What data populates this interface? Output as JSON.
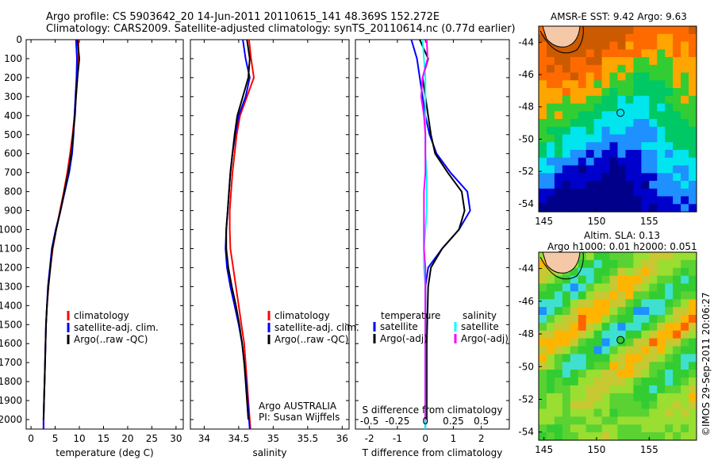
{
  "header": {
    "line1": "Argo profile: CS 5903642_20 14-Jun-2011 20110615_141 48.369S 152.272E",
    "line2": "Climatology: CARS2009. Satellite-adjusted climatology: synTS_20110614.nc (0.77d earlier)"
  },
  "colors": {
    "climatology": "#ff0000",
    "satellite": "#0000ff",
    "argo": "#000000",
    "satellite_salinity": "#00ffff",
    "argo_salinity": "#ff00ff"
  },
  "chart_data": [
    {
      "type": "line",
      "panel": "temperature",
      "xlabel": "temperature (deg C)",
      "ylabel": "",
      "xlim": [
        -1,
        31.5
      ],
      "ylim": [
        2050,
        0
      ],
      "xticks": [
        0,
        5,
        10,
        15,
        20,
        25,
        30
      ],
      "yticks": [
        0,
        100,
        200,
        300,
        400,
        500,
        600,
        700,
        800,
        900,
        1000,
        1100,
        1200,
        1300,
        1400,
        1500,
        1600,
        1700,
        1800,
        1900,
        2000
      ],
      "legend": [
        "climatology",
        "satellite-adj. clim.",
        "Argo(..raw -QC)"
      ],
      "series": [
        {
          "name": "climatology",
          "color": "#ff0000",
          "points": [
            [
              9.8,
              0
            ],
            [
              9.8,
              100
            ],
            [
              9.6,
              200
            ],
            [
              9.3,
              300
            ],
            [
              9.0,
              400
            ],
            [
              8.6,
              500
            ],
            [
              8.1,
              600
            ],
            [
              7.5,
              700
            ],
            [
              6.8,
              800
            ],
            [
              6.0,
              900
            ],
            [
              5.2,
              1000
            ],
            [
              4.5,
              1100
            ],
            [
              4.0,
              1200
            ],
            [
              3.6,
              1300
            ],
            [
              3.3,
              1400
            ],
            [
              3.1,
              1500
            ],
            [
              3.0,
              1600
            ],
            [
              2.9,
              1700
            ],
            [
              2.8,
              1800
            ],
            [
              2.7,
              1900
            ],
            [
              2.6,
              2000
            ],
            [
              2.6,
              2050
            ]
          ]
        },
        {
          "name": "satellite-adj. clim.",
          "color": "#0000ff",
          "points": [
            [
              9.3,
              0
            ],
            [
              9.5,
              100
            ],
            [
              9.4,
              200
            ],
            [
              9.2,
              300
            ],
            [
              9.0,
              400
            ],
            [
              8.8,
              500
            ],
            [
              8.5,
              600
            ],
            [
              7.9,
              700
            ],
            [
              7.0,
              800
            ],
            [
              6.1,
              900
            ],
            [
              5.1,
              1000
            ],
            [
              4.3,
              1100
            ],
            [
              3.9,
              1200
            ],
            [
              3.5,
              1300
            ],
            [
              3.3,
              1400
            ],
            [
              3.1,
              1500
            ],
            [
              3.0,
              1600
            ],
            [
              2.9,
              1700
            ],
            [
              2.8,
              1800
            ],
            [
              2.7,
              1900
            ],
            [
              2.6,
              2000
            ],
            [
              2.6,
              2050
            ]
          ]
        },
        {
          "name": "Argo(..raw -QC)",
          "color": "#000000",
          "points": [
            [
              9.6,
              0
            ],
            [
              10.0,
              100
            ],
            [
              9.6,
              200
            ],
            [
              9.3,
              300
            ],
            [
              9.1,
              400
            ],
            [
              8.7,
              500
            ],
            [
              8.3,
              600
            ],
            [
              7.7,
              700
            ],
            [
              6.9,
              800
            ],
            [
              6.1,
              900
            ],
            [
              5.2,
              1000
            ],
            [
              4.4,
              1100
            ],
            [
              4.0,
              1200
            ],
            [
              3.6,
              1300
            ],
            [
              3.3,
              1400
            ],
            [
              3.1,
              1500
            ],
            [
              3.0,
              1600
            ],
            [
              2.9,
              1700
            ],
            [
              2.8,
              1800
            ],
            [
              2.7,
              1900
            ],
            [
              2.6,
              2000
            ]
          ]
        }
      ]
    },
    {
      "type": "line",
      "panel": "salinity",
      "xlabel": "salinity",
      "ylabel": "",
      "xlim": [
        33.8,
        36.1
      ],
      "ylim": [
        2050,
        0
      ],
      "xticks": [
        34,
        34.5,
        35,
        35.5,
        36
      ],
      "legend": [
        "climatology",
        "satellite-adj. clim.",
        "Argo(..raw -QC)"
      ],
      "annotation": [
        "Argo AUSTRALIA",
        "PI: Susan Wijffels"
      ],
      "series": [
        {
          "name": "climatology",
          "color": "#ff0000",
          "points": [
            [
              34.65,
              0
            ],
            [
              34.68,
              100
            ],
            [
              34.72,
              200
            ],
            [
              34.62,
              300
            ],
            [
              34.52,
              400
            ],
            [
              34.47,
              500
            ],
            [
              34.44,
              600
            ],
            [
              34.41,
              700
            ],
            [
              34.39,
              800
            ],
            [
              34.37,
              900
            ],
            [
              34.37,
              1000
            ],
            [
              34.38,
              1100
            ],
            [
              34.42,
              1200
            ],
            [
              34.46,
              1300
            ],
            [
              34.5,
              1400
            ],
            [
              34.54,
              1500
            ],
            [
              34.58,
              1600
            ],
            [
              34.6,
              1700
            ],
            [
              34.62,
              1800
            ],
            [
              34.64,
              1900
            ],
            [
              34.66,
              2000
            ],
            [
              34.67,
              2050
            ]
          ]
        },
        {
          "name": "satellite-adj. clim.",
          "color": "#0000ff",
          "points": [
            [
              34.56,
              0
            ],
            [
              34.6,
              100
            ],
            [
              34.66,
              200
            ],
            [
              34.6,
              300
            ],
            [
              34.5,
              400
            ],
            [
              34.45,
              500
            ],
            [
              34.41,
              600
            ],
            [
              34.38,
              700
            ],
            [
              34.36,
              800
            ],
            [
              34.34,
              900
            ],
            [
              34.32,
              1000
            ],
            [
              34.31,
              1100
            ],
            [
              34.33,
              1200
            ],
            [
              34.38,
              1300
            ],
            [
              34.44,
              1400
            ],
            [
              34.5,
              1500
            ],
            [
              34.55,
              1600
            ],
            [
              34.58,
              1700
            ],
            [
              34.61,
              1800
            ],
            [
              34.63,
              1900
            ],
            [
              34.65,
              2000
            ],
            [
              34.66,
              2050
            ]
          ]
        },
        {
          "name": "Argo(..raw -QC)",
          "color": "#000000",
          "points": [
            [
              34.62,
              0
            ],
            [
              34.66,
              100
            ],
            [
              34.64,
              200
            ],
            [
              34.56,
              300
            ],
            [
              34.48,
              400
            ],
            [
              34.44,
              500
            ],
            [
              34.41,
              600
            ],
            [
              34.38,
              700
            ],
            [
              34.36,
              800
            ],
            [
              34.34,
              900
            ],
            [
              34.32,
              1000
            ],
            [
              34.32,
              1100
            ],
            [
              34.35,
              1200
            ],
            [
              34.4,
              1300
            ],
            [
              34.46,
              1400
            ],
            [
              34.51,
              1500
            ],
            [
              34.55,
              1600
            ],
            [
              34.58,
              1700
            ],
            [
              34.6,
              1800
            ],
            [
              34.62,
              1900
            ],
            [
              34.64,
              2000
            ]
          ]
        }
      ]
    },
    {
      "type": "line",
      "panel": "difference",
      "xlabel": "T difference from climatology",
      "xlabel_top": "S difference from climatology",
      "xlim": [
        -2.5,
        3.0
      ],
      "ylim": [
        2050,
        0
      ],
      "xticks": [
        -2,
        -1,
        0,
        1,
        2
      ],
      "xticks_top": [
        -0.5,
        -0.25,
        0,
        0.25,
        0.5
      ],
      "legend_headers": [
        "temperature",
        "salinity"
      ],
      "legend": [
        "satellite",
        "Argo(-adj)",
        "satellite",
        "Argo(-adj)"
      ],
      "series": [
        {
          "name": "satellite",
          "color": "#0000ff",
          "points": [
            [
              -0.5,
              0
            ],
            [
              -0.3,
              100
            ],
            [
              -0.2,
              200
            ],
            [
              -0.1,
              300
            ],
            [
              0.0,
              400
            ],
            [
              0.15,
              500
            ],
            [
              0.4,
              600
            ],
            [
              0.9,
              700
            ],
            [
              1.5,
              800
            ],
            [
              1.6,
              900
            ],
            [
              1.2,
              1000
            ],
            [
              0.6,
              1100
            ],
            [
              0.1,
              1200
            ],
            [
              0.0,
              1300
            ],
            [
              0.0,
              1600
            ],
            [
              0.0,
              2050
            ]
          ]
        },
        {
          "name": "Argo(-adj)",
          "color": "#000000",
          "points": [
            [
              -0.2,
              0
            ],
            [
              0.1,
              100
            ],
            [
              -0.1,
              200
            ],
            [
              0.0,
              300
            ],
            [
              0.1,
              400
            ],
            [
              0.2,
              500
            ],
            [
              0.35,
              600
            ],
            [
              0.8,
              700
            ],
            [
              1.3,
              800
            ],
            [
              1.4,
              900
            ],
            [
              1.2,
              1000
            ],
            [
              0.6,
              1100
            ],
            [
              0.2,
              1200
            ],
            [
              0.1,
              1300
            ],
            [
              0.05,
              1600
            ],
            [
              0.05,
              2000
            ]
          ]
        },
        {
          "name": "satellite",
          "color": "#00ffff",
          "points": [
            [
              -0.1,
              0
            ],
            [
              -0.05,
              100
            ],
            [
              0.0,
              200
            ],
            [
              0.0,
              300
            ],
            [
              0.0,
              400
            ],
            [
              0.0,
              500
            ],
            [
              0.0,
              600
            ],
            [
              0.05,
              700
            ],
            [
              0.05,
              800
            ],
            [
              0.05,
              900
            ],
            [
              0.0,
              1000
            ],
            [
              -0.05,
              1100
            ],
            [
              -0.05,
              1200
            ],
            [
              0.0,
              1300
            ],
            [
              0.0,
              1600
            ],
            [
              0.0,
              2050
            ]
          ]
        },
        {
          "name": "Argo(-adj)",
          "color": "#ff00ff",
          "points": [
            [
              0.05,
              0
            ],
            [
              0.08,
              100
            ],
            [
              -0.1,
              200
            ],
            [
              -0.15,
              300
            ],
            [
              -0.05,
              400
            ],
            [
              0.0,
              500
            ],
            [
              0.0,
              600
            ],
            [
              0.0,
              700
            ],
            [
              -0.05,
              800
            ],
            [
              -0.05,
              900
            ],
            [
              -0.05,
              1000
            ],
            [
              -0.05,
              1100
            ],
            [
              0.0,
              1200
            ],
            [
              0.0,
              1300
            ],
            [
              0.0,
              1600
            ],
            [
              0.0,
              2000
            ]
          ]
        }
      ]
    },
    {
      "type": "heatmap",
      "panel": "sst-map",
      "title": "AMSR-E SST: 9.42 Argo: 9.63",
      "xticks": [
        145,
        150,
        155
      ],
      "yticks": [
        -44,
        -46,
        -48,
        -50,
        -52,
        -54
      ],
      "xlim": [
        144.5,
        159.5
      ],
      "ylim": [
        -54.5,
        -43
      ],
      "marker": {
        "lon": 152.272,
        "lat": -48.369
      }
    },
    {
      "type": "heatmap",
      "panel": "sla-map",
      "title": "Altim. SLA: 0.13",
      "subtitle": "Argo h1000: 0.01 h2000: 0.051",
      "xticks": [
        145,
        150,
        155
      ],
      "yticks": [
        -44,
        -46,
        -48,
        -50,
        -52,
        -54
      ],
      "xlim": [
        144.5,
        159.5
      ],
      "ylim": [
        -54.5,
        -43
      ],
      "marker": {
        "lon": 152.272,
        "lat": -48.369
      }
    }
  ],
  "credit": "©IMOS 29-Sep-2011 20:06:27"
}
